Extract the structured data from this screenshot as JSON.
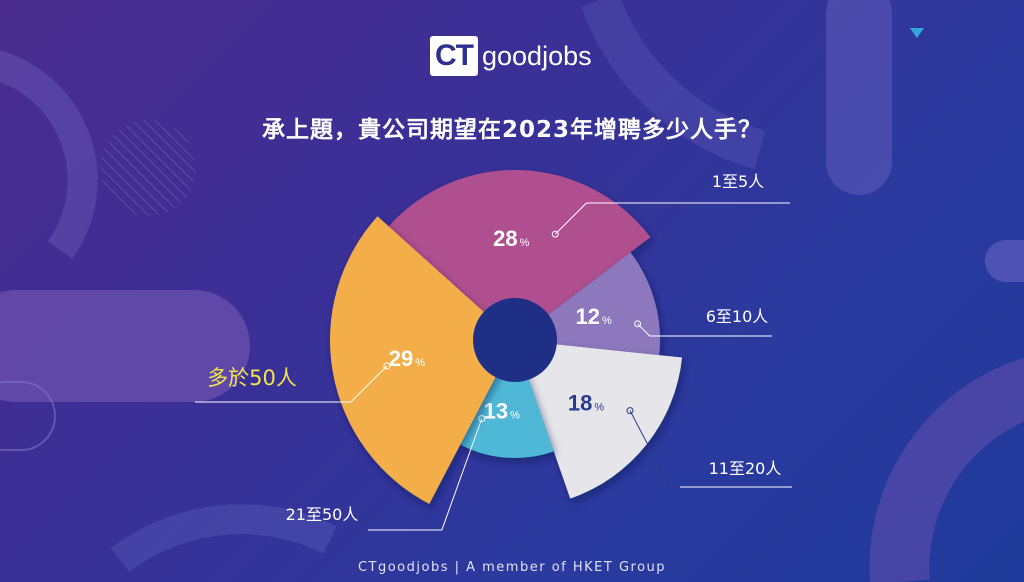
{
  "logo": {
    "mark": "CT",
    "word": "goodjobs"
  },
  "title": "承上題，貴公司期望在2023年增聘多少人手？",
  "footer": "CTgoodjobs | A member of HKET Group",
  "colors": {
    "accent_label": "#f2e34a",
    "label": "#ffffff"
  },
  "chart_data": {
    "type": "pie",
    "title": "承上題，貴公司期望在2023年增聘多少人手？",
    "unit": "%",
    "slices": [
      {
        "label": "1至5人",
        "value": 28,
        "color": "#b0508f",
        "value_color": "#ffffff"
      },
      {
        "label": "6至10人",
        "value": 12,
        "color": "#8d78bd",
        "value_color": "#ffffff"
      },
      {
        "label": "11至20人",
        "value": 18,
        "color": "#e6e6ea",
        "value_color": "#2a3a8e"
      },
      {
        "label": "21至50人",
        "value": 13,
        "color": "#4fb8d6",
        "value_color": "#ffffff"
      },
      {
        "label": "多於50人",
        "value": 29,
        "color": "#f3ae4a",
        "value_color": "#ffffff",
        "highlight": true
      }
    ]
  }
}
